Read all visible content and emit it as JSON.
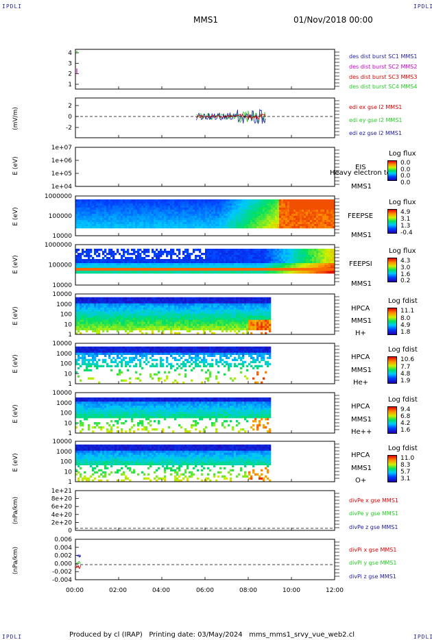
{
  "header": {
    "corner_left": "IPDLI",
    "corner_right": "IPDLI",
    "mission": "MMS1",
    "datetime": "01/Nov/2018 00:00"
  },
  "footer": {
    "text": "Produced by cl (IRAP)   Printing date: 03/May/2024   mms_mms1_srvy_vue_web2.cl",
    "corner_left": "IPDLI",
    "corner_right": "IPDLI"
  },
  "colors": {
    "red": "#dd0000",
    "green": "#22cc22",
    "blue": "#1a1aa8",
    "magenta": "#cc00cc"
  },
  "chart_data": [
    {
      "type": "line",
      "panel": "des_dist_burst",
      "yticks": [
        "4",
        "3",
        "2",
        "1"
      ],
      "ylim": [
        0.6,
        4.4
      ],
      "legend": [
        "des dist burst SC1 MMS1",
        "des dist burst SC2 MMS2",
        "des dist burst SC3 MMS3",
        "des dist burst SC4 MMS4"
      ],
      "legend_colors": [
        "#1a1aa8",
        "#cc00cc",
        "#dd0000",
        "#22cc22"
      ]
    },
    {
      "type": "line",
      "panel": "edi",
      "ylabel": "(mV/m)",
      "yticks": [
        "2",
        "0",
        "-2"
      ],
      "ylim": [
        -3,
        3
      ],
      "legend": [
        "edi ex gse l2 MMS1",
        "edi ey gse l2 MMS1",
        "edi ez gse l2 MMS1"
      ],
      "legend_colors": [
        "#dd0000",
        "#22cc22",
        "#1a1aa8"
      ]
    },
    {
      "type": "heatmap",
      "panel": "EIS",
      "ylabel": "E (eV)",
      "yticks": [
        "1e+07",
        "1e+06",
        "1e+05",
        "1e+04"
      ],
      "labels": [
        "EIS",
        "MMS1"
      ],
      "overlay_text": "Heavy electron to",
      "colorbar_title": "Log flux",
      "colorbar_ticks": [
        "0.0",
        "0.0",
        "0.0",
        "0.0"
      ]
    },
    {
      "type": "heatmap",
      "panel": "FEEPSE",
      "ylabel": "E (eV)",
      "yticks": [
        "1000000",
        "100000",
        "10000"
      ],
      "labels": [
        "FEEPSE",
        "MMS1"
      ],
      "colorbar_title": "Log flux",
      "colorbar_ticks": [
        "4.9",
        "3.1",
        "1.3",
        "-0.4"
      ]
    },
    {
      "type": "heatmap",
      "panel": "FEEPSI",
      "ylabel": "E (eV)",
      "yticks": [
        "1000000",
        "100000",
        "10000"
      ],
      "labels": [
        "FEEPSI",
        "MMS1"
      ],
      "colorbar_title": "Log flux",
      "colorbar_ticks": [
        "4.3",
        "3.0",
        "1.6",
        "0.2"
      ]
    },
    {
      "type": "heatmap",
      "panel": "HPCA_H",
      "ylabel": "E (eV)",
      "yticks": [
        "10000",
        "1000",
        "100",
        "10",
        "1"
      ],
      "labels": [
        "HPCA",
        "MMS1",
        "H+"
      ],
      "colorbar_title": "Log fdist",
      "colorbar_ticks": [
        "11.1",
        "8.0",
        "4.9",
        "1.8"
      ]
    },
    {
      "type": "heatmap",
      "panel": "HPCA_He",
      "ylabel": "E (eV)",
      "yticks": [
        "10000",
        "1000",
        "100",
        "10",
        "1"
      ],
      "labels": [
        "HPCA",
        "MMS1",
        "He+"
      ],
      "colorbar_title": "Log fdist",
      "colorbar_ticks": [
        "10.6",
        "7.7",
        "4.8",
        "1.9"
      ]
    },
    {
      "type": "heatmap",
      "panel": "HPCA_He2",
      "ylabel": "E (eV)",
      "yticks": [
        "10000",
        "1000",
        "100",
        "10",
        "1"
      ],
      "labels": [
        "HPCA",
        "MMS1",
        "He++"
      ],
      "colorbar_title": "Log fdist",
      "colorbar_ticks": [
        "9.4",
        "6.8",
        "4.2",
        "1.6"
      ]
    },
    {
      "type": "heatmap",
      "panel": "HPCA_O",
      "ylabel": "E (eV)",
      "yticks": [
        "10000",
        "1000",
        "100",
        "10",
        "1"
      ],
      "labels": [
        "HPCA",
        "MMS1",
        "O+"
      ],
      "colorbar_title": "Log fdist",
      "colorbar_ticks": [
        "11.0",
        "8.3",
        "5.7",
        "3.1"
      ]
    },
    {
      "type": "line",
      "panel": "divPe",
      "ylabel": "(nPa/km)",
      "yticks": [
        "1e+21",
        "8e+20",
        "6e+20",
        "4e+20",
        "2e+20",
        "0"
      ],
      "ylim": [
        0,
        1e+21
      ],
      "legend": [
        "divPe x gse MMS1",
        "divPe y gse MMS1",
        "divPe z gse MMS1"
      ],
      "legend_colors": [
        "#dd0000",
        "#22cc22",
        "#1a1aa8"
      ]
    },
    {
      "type": "line",
      "panel": "divPi",
      "ylabel": "(nPa/km)",
      "yticks": [
        "0.006",
        "0.004",
        "0.002",
        "0.000",
        "-0.002",
        "-0.004"
      ],
      "ylim": [
        -0.0045,
        0.0065
      ],
      "legend": [
        "divPi x gse MMS1",
        "divPi y gse MMS1",
        "divPi z gse MMS1"
      ],
      "legend_colors": [
        "#dd0000",
        "#22cc22",
        "#1a1aa8"
      ]
    }
  ],
  "xaxis": {
    "ticks": [
      "00:00",
      "02:00",
      "04:00",
      "06:00",
      "08:00",
      "10:00",
      "12:00"
    ],
    "range_hours": [
      0,
      12
    ],
    "data_end_hours": 9.0
  }
}
